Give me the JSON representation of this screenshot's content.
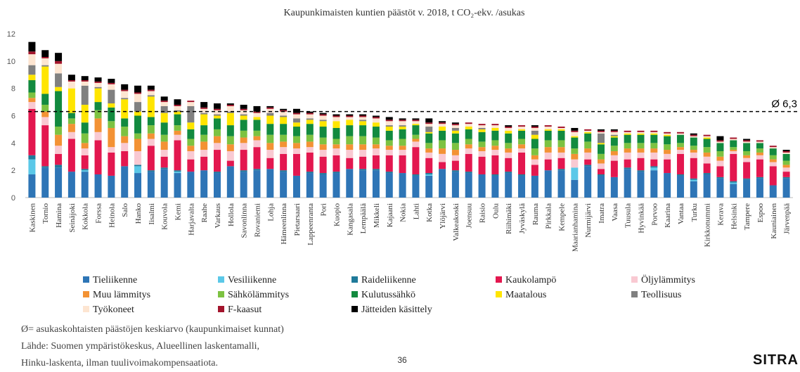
{
  "chart_data": {
    "type": "stacked_bar",
    "subtitle": "Kaupunkimaisten kuntien päästöt v. 2018, t CO₂-ekv. /asukas",
    "categories": [
      "Kaskinen",
      "Tornio",
      "Hamina",
      "Seinäjoki",
      "Kokkola",
      "Forssa",
      "Heinola",
      "Salo",
      "Hanko",
      "Iisalmi",
      "Kouvola",
      "Kemi",
      "Harjavalta",
      "Raahe",
      "Varkaus",
      "Hollola",
      "Savonlinna",
      "Rovaniemi",
      "Lohja",
      "Hämeenlinna",
      "Pietarsaari",
      "Lappeenranta",
      "Pori",
      "Kuopio",
      "Kangasala",
      "Lempäälä",
      "Mikkeli",
      "Kajaani",
      "Nokia",
      "Lahti",
      "Kotka",
      "Ylöjärvi",
      "Valkeakoski",
      "Joensuu",
      "Raisio",
      "Oulu",
      "Riihimäki",
      "Jyväskylä",
      "Rauma",
      "Pirkkala",
      "Kempele",
      "Maarianhamina",
      "Nurmijärvi",
      "Imatra",
      "Vaasa",
      "Tuusula",
      "Hyvinkää",
      "Porvoo",
      "Kaarina",
      "Vantaa",
      "Turku",
      "Kirkkonummi",
      "Kerava",
      "Helsinki",
      "Tampere",
      "Espoo",
      "Kauniainen",
      "Järvenpää"
    ],
    "series": [
      {
        "name": "Tieliikenne",
        "color": "#2e75b6",
        "values": [
          1.7,
          2.2,
          2.2,
          1.9,
          1.9,
          1.7,
          1.6,
          2.3,
          1.8,
          1.9,
          2.1,
          1.8,
          1.9,
          2.0,
          1.8,
          2.3,
          1.9,
          2.0,
          2.1,
          1.9,
          1.6,
          1.8,
          1.7,
          1.8,
          2.1,
          2.0,
          2.0,
          1.8,
          1.8,
          1.6,
          1.6,
          2.1,
          1.9,
          1.8,
          1.7,
          1.6,
          1.8,
          1.6,
          1.6,
          2.0,
          2.0,
          1.3,
          2.3,
          1.6,
          1.5,
          2.1,
          1.9,
          2.0,
          1.8,
          1.6,
          1.2,
          1.7,
          1.4,
          1.0,
          1.3,
          1.4,
          0.9,
          1.4
        ]
      },
      {
        "name": "Vesiliikenne",
        "color": "#5bc8e8",
        "values": [
          1.1,
          0,
          0,
          0,
          0.1,
          0,
          0,
          0,
          0.5,
          0,
          0,
          0.1,
          0,
          0,
          0,
          0,
          0,
          0,
          0,
          0,
          0,
          0,
          0,
          0,
          0,
          0,
          0,
          0,
          0,
          0,
          0.1,
          0,
          0,
          0,
          0,
          0,
          0,
          0,
          0,
          0,
          0,
          0.9,
          0,
          0,
          0,
          0,
          0,
          0.2,
          0,
          0,
          0.1,
          0,
          0,
          0.1,
          0,
          0,
          0,
          0
        ]
      },
      {
        "name": "Raideliikenne",
        "color": "#1f7a9a",
        "values": [
          0.3,
          0.1,
          0.2,
          0,
          0.1,
          0,
          0,
          0,
          0.1,
          0.1,
          0.1,
          0.1,
          0,
          0,
          0.1,
          0,
          0.1,
          0.1,
          0,
          0.1,
          0,
          0.1,
          0.1,
          0.1,
          0,
          0.1,
          0.1,
          0.1,
          0,
          0.1,
          0.1,
          0,
          0.1,
          0.1,
          0,
          0.1,
          0.1,
          0.1,
          0,
          0,
          0.1,
          0,
          0.1,
          0.1,
          0,
          0.1,
          0.1,
          0.1,
          0,
          0.1,
          0.1,
          0.1,
          0.1,
          0.1,
          0.1,
          0.1,
          0,
          0.1
        ]
      },
      {
        "name": "Kaukolampö",
        "color": "#e3174f",
        "values": [
          3.4,
          3.0,
          0.8,
          2.4,
          1.0,
          2.5,
          1.7,
          1.1,
          0,
          1.8,
          0.8,
          2.2,
          0.9,
          1.0,
          1.6,
          0.4,
          1.5,
          1.6,
          0.8,
          1.2,
          1.6,
          1.4,
          1.2,
          1.2,
          0.8,
          0.9,
          1.0,
          1.2,
          1.3,
          2.0,
          1.1,
          0.5,
          0.7,
          1.3,
          1.3,
          1.4,
          1.0,
          1.6,
          0.8,
          0.8,
          0.8,
          0,
          0.4,
          0.4,
          1.2,
          0.6,
          0.9,
          0.5,
          1.0,
          1.5,
          1.5,
          0.7,
          0.8,
          2.0,
          1.2,
          1.3,
          1.4,
          0.4
        ]
      },
      {
        "name": "Öljylämmitys",
        "color": "#f9c9d2",
        "values": [
          0.5,
          0.6,
          0.6,
          0.5,
          0.5,
          0.6,
          0.4,
          0.6,
          1.0,
          0.5,
          0.5,
          0.4,
          0.6,
          0.5,
          0.5,
          0.7,
          0.5,
          0.5,
          0.6,
          0.5,
          0.4,
          0.4,
          0.5,
          0.5,
          0.6,
          0.5,
          0.5,
          0.4,
          0.4,
          0.4,
          0.4,
          0.6,
          0.4,
          0.4,
          0.4,
          0.4,
          0.4,
          0.3,
          0.4,
          0.5,
          0.4,
          0.6,
          0.5,
          0.4,
          0.4,
          0.5,
          0.4,
          0.5,
          0.4,
          0.3,
          0.4,
          0.5,
          0.4,
          0.2,
          0.3,
          0.3,
          0.3,
          0.3
        ]
      },
      {
        "name": "Muu lämmitys",
        "color": "#f39234",
        "values": [
          0.3,
          0.4,
          0.8,
          0.6,
          0.4,
          1.0,
          1.4,
          0.5,
          0.9,
          0.4,
          0.6,
          0.3,
          0.4,
          0.6,
          0.5,
          0.5,
          0.4,
          0.3,
          0.5,
          0.4,
          0.4,
          0.4,
          0.4,
          0.3,
          0.4,
          0.4,
          0.3,
          0.3,
          0.3,
          0.2,
          0.3,
          0.4,
          0.4,
          0.3,
          0.3,
          0.3,
          0.3,
          0.3,
          0.3,
          0.4,
          0.4,
          0.4,
          0.3,
          0.3,
          0.3,
          0.3,
          0.3,
          0.3,
          0.3,
          0.2,
          0.2,
          0.3,
          0.3,
          0.1,
          0.2,
          0.2,
          0.2,
          0.2
        ]
      },
      {
        "name": "Sähkölämmitys",
        "color": "#7dc241",
        "values": [
          0.4,
          0.5,
          0.6,
          0.4,
          0.7,
          0.6,
          0.5,
          0.7,
          0.4,
          0.6,
          0.5,
          0.4,
          0.5,
          0.5,
          0.5,
          0.6,
          0.5,
          0.4,
          0.6,
          0.5,
          0.5,
          0.5,
          0.5,
          0.4,
          0.6,
          0.6,
          0.5,
          0.4,
          0.5,
          0.3,
          0.4,
          0.6,
          0.5,
          0.4,
          0.4,
          0.4,
          0.4,
          0.4,
          0.5,
          0.5,
          0.5,
          0.4,
          0.5,
          0.4,
          0.4,
          0.4,
          0.4,
          0.4,
          0.4,
          0.3,
          0.3,
          0.4,
          0.4,
          0.2,
          0.3,
          0.3,
          0.3,
          0.3
        ]
      },
      {
        "name": "Kulutussähkö",
        "color": "#128a3f",
        "values": [
          0.9,
          0.8,
          2.6,
          0.4,
          0.8,
          0.6,
          1.0,
          0.6,
          1.3,
          0.6,
          0.9,
          0.8,
          0.7,
          0.7,
          0.8,
          0.8,
          0.8,
          0.8,
          0.8,
          0.8,
          0.7,
          0.8,
          0.8,
          0.8,
          0.8,
          0.8,
          0.8,
          0.7,
          0.7,
          0.7,
          0.7,
          0.7,
          0.7,
          0.7,
          0.7,
          0.7,
          0.7,
          0.6,
          0.7,
          0.7,
          0.7,
          0.8,
          0.6,
          0.7,
          0.6,
          0.6,
          0.6,
          0.6,
          0.6,
          0.6,
          0.6,
          0.6,
          0.6,
          0.5,
          0.6,
          0.4,
          0.5,
          0.5
        ]
      },
      {
        "name": "Maatalous",
        "color": "#ffe500",
        "values": [
          0.4,
          2.0,
          0.3,
          1.8,
          1.3,
          1.0,
          0.3,
          1.4,
          0.3,
          1.5,
          0.7,
          0.2,
          0.5,
          0.8,
          0.2,
          0.9,
          0.3,
          0.2,
          0.6,
          0.5,
          0.3,
          0.3,
          0.4,
          0.5,
          0.4,
          0.3,
          0.3,
          0.3,
          0.2,
          0.1,
          0.1,
          0.3,
          0.2,
          0.2,
          0.2,
          0.2,
          0.2,
          0.1,
          0.3,
          0.1,
          0.1,
          0.1,
          0.1,
          0.1,
          0.1,
          0.1,
          0.1,
          0.1,
          0.1,
          0,
          0,
          0.1,
          0,
          0,
          0,
          0,
          0,
          0
        ]
      },
      {
        "name": "Teollisuus",
        "color": "#808080",
        "values": [
          0.7,
          0.1,
          1.0,
          0,
          1.4,
          0.1,
          1.0,
          0.1,
          0.7,
          0.1,
          0.5,
          0.1,
          1.2,
          0.1,
          0.1,
          0.1,
          0.1,
          0,
          0.2,
          0.1,
          0.3,
          0.1,
          0.1,
          0,
          0,
          0.1,
          0,
          0.1,
          0.1,
          0,
          0.4,
          0,
          0.2,
          0,
          0.1,
          0,
          0,
          0,
          0.3,
          0,
          0,
          0,
          0,
          0.7,
          0.1,
          0,
          0,
          0,
          0,
          0,
          0,
          0,
          0,
          0,
          0,
          0,
          0,
          0
        ]
      },
      {
        "name": "Työkoneet",
        "color": "#fde5d1",
        "values": [
          0.8,
          0.5,
          0.7,
          0.5,
          0.3,
          0.3,
          0.4,
          0.5,
          0.6,
          0.3,
          0.3,
          0.3,
          0.3,
          0.3,
          0.3,
          0.4,
          0.3,
          0.3,
          0.3,
          0.3,
          0.3,
          0.3,
          0.3,
          0.3,
          0.2,
          0.2,
          0.3,
          0.3,
          0.3,
          0.2,
          0.2,
          0.2,
          0.2,
          0.2,
          0.2,
          0.2,
          0.2,
          0.2,
          0.2,
          0.2,
          0.1,
          0.3,
          0.1,
          0.1,
          0.2,
          0.1,
          0.1,
          0.1,
          0.1,
          0.1,
          0.1,
          0.1,
          0.1,
          0.1,
          0.1,
          0.1,
          0.1,
          0.1
        ]
      },
      {
        "name": "F-kaasut",
        "color": "#a3142c",
        "values": [
          0.2,
          0.1,
          0.2,
          0.1,
          0.1,
          0.1,
          0.1,
          0.1,
          0.1,
          0.1,
          0.1,
          0.1,
          0.1,
          0.1,
          0.1,
          0.1,
          0.1,
          0.1,
          0.1,
          0.1,
          0.1,
          0.1,
          0.1,
          0.1,
          0.1,
          0.1,
          0.1,
          0.1,
          0.1,
          0.1,
          0.1,
          0.1,
          0.1,
          0.1,
          0.1,
          0.1,
          0.1,
          0.1,
          0.1,
          0.1,
          0.1,
          0.1,
          0.1,
          0.1,
          0.1,
          0.1,
          0.1,
          0.1,
          0.1,
          0.1,
          0.1,
          0.1,
          0.1,
          0.1,
          0.1,
          0.1,
          0.1,
          0.1
        ]
      },
      {
        "name": "Jätteiden käsittely",
        "color": "#000000",
        "values": [
          0.7,
          0.5,
          0.6,
          0.4,
          0.3,
          0.3,
          0.3,
          0.4,
          0.5,
          0.3,
          0.3,
          0.4,
          0,
          0.4,
          0.4,
          0.1,
          0.3,
          0.4,
          0.1,
          0.1,
          0.3,
          0.1,
          0.1,
          0.1,
          0.1,
          0.1,
          0.1,
          0.2,
          0.1,
          0.1,
          0.3,
          0.1,
          0.1,
          0,
          0,
          0,
          0.1,
          0,
          0.1,
          0,
          0,
          0.2,
          0,
          0.1,
          0.1,
          0,
          0,
          0,
          0,
          0,
          0.1,
          0,
          0.3,
          0,
          0.1,
          0,
          0,
          0.1
        ]
      }
    ],
    "ylim": [
      0,
      12
    ],
    "yticks": [
      0,
      2,
      4,
      6,
      8,
      10,
      12
    ],
    "grid": false,
    "average": {
      "value": 6.3,
      "label": "Ø 6,3"
    }
  },
  "footer": {
    "notes": [
      "Ø= asukaskohtaisten päästöjen keskiarvo (kaupunkimaiset kunnat)",
      "Lähde: Suomen ympäristökeskus, Alueellinen laskentamalli,",
      "Hinku-laskenta, ilman tuulivoimakompensaatiota."
    ],
    "page": "36",
    "logo": "SITRA"
  }
}
